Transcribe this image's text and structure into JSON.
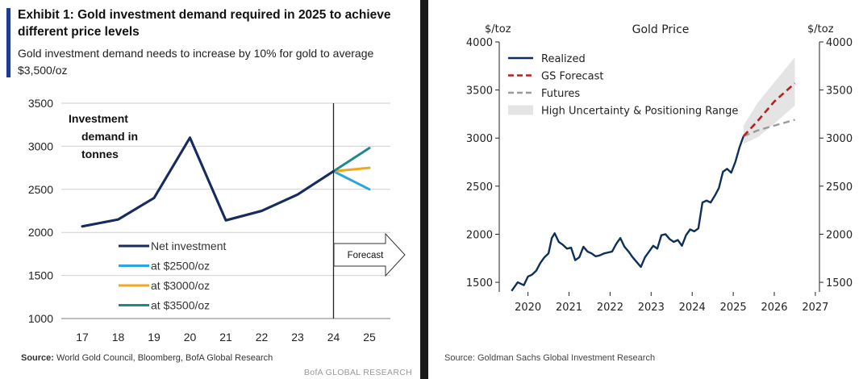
{
  "left": {
    "title": "Exhibit 1: Gold investment demand required in 2025 to achieve different price levels",
    "subtitle": "Gold investment demand needs to increase by 10% for gold to average $3,500/oz",
    "source_label": "Source:",
    "source_text": " World Gold Council, Bloomberg, BofA Global Research",
    "brand": "BofA GLOBAL RESEARCH",
    "forecast_label": "Forecast"
  },
  "right": {
    "source_text": "Source: Goldman Sachs Global Investment Research"
  },
  "colors": {
    "net": "#1a2a5e",
    "at2500": "#2aa7dd",
    "at3000": "#f2a81d",
    "at3500": "#1f8a8c",
    "realized": "#0d2f5c",
    "gs_forecast": "#b22222",
    "futures": "#9a9a9a",
    "band": "#e4e4e4"
  },
  "chart_data": [
    {
      "type": "line",
      "title": "Investment demand in tonnes",
      "categories": [
        "17",
        "18",
        "19",
        "20",
        "21",
        "22",
        "23",
        "24",
        "25"
      ],
      "ylim": [
        1000,
        3500
      ],
      "yticks": [
        1000,
        1500,
        2000,
        2500,
        3000,
        3500
      ],
      "grid": true,
      "legend_position": "bottom-left",
      "series": [
        {
          "name": "Net investment",
          "color_key": "net",
          "values": [
            2070,
            2150,
            2400,
            3100,
            2140,
            2250,
            2440,
            2710,
            null
          ]
        },
        {
          "name": "at $2500/oz",
          "color_key": "at2500",
          "values": [
            null,
            null,
            null,
            null,
            null,
            null,
            null,
            2710,
            2500
          ]
        },
        {
          "name": "at $3000/oz",
          "color_key": "at3000",
          "values": [
            null,
            null,
            null,
            null,
            null,
            null,
            null,
            2710,
            2750
          ]
        },
        {
          "name": "at $3500/oz",
          "color_key": "at3500",
          "values": [
            2070,
            2150,
            2400,
            3100,
            2140,
            2250,
            2440,
            2710,
            2980
          ]
        }
      ]
    },
    {
      "type": "line",
      "title": "Gold Price",
      "ylabel_left": "$/toz",
      "ylabel_right": "$/toz",
      "xticks": [
        2020,
        2021,
        2022,
        2023,
        2024,
        2025,
        2026,
        2027
      ],
      "yticks": [
        1500,
        2000,
        2500,
        3000,
        3500,
        4000
      ],
      "xlim": [
        2019.3,
        2027.1
      ],
      "ylim": [
        1400,
        4000
      ],
      "legend_position": "top-left",
      "legend": [
        "Realized",
        "GS Forecast",
        "Futures",
        "High Uncertainty & Positioning Range"
      ],
      "series": [
        {
          "name": "Realized",
          "color_key": "realized",
          "x": [
            2019.6,
            2019.75,
            2019.9,
            2020.0,
            2020.1,
            2020.2,
            2020.3,
            2020.4,
            2020.5,
            2020.58,
            2020.65,
            2020.75,
            2020.85,
            2020.95,
            2021.05,
            2021.15,
            2021.25,
            2021.35,
            2021.45,
            2021.55,
            2021.65,
            2021.75,
            2021.85,
            2021.95,
            2022.05,
            2022.15,
            2022.25,
            2022.35,
            2022.45,
            2022.55,
            2022.65,
            2022.75,
            2022.85,
            2022.95,
            2023.05,
            2023.15,
            2023.25,
            2023.35,
            2023.45,
            2023.55,
            2023.65,
            2023.75,
            2023.85,
            2023.95,
            2024.05,
            2024.15,
            2024.25,
            2024.35,
            2024.45,
            2024.55,
            2024.65,
            2024.75,
            2024.85,
            2024.95,
            2025.05,
            2025.15,
            2025.25
          ],
          "y": [
            1410,
            1500,
            1470,
            1560,
            1580,
            1620,
            1700,
            1760,
            1800,
            1960,
            2010,
            1920,
            1890,
            1850,
            1860,
            1730,
            1760,
            1870,
            1820,
            1800,
            1770,
            1780,
            1800,
            1810,
            1820,
            1900,
            1960,
            1870,
            1820,
            1760,
            1710,
            1660,
            1760,
            1820,
            1880,
            1850,
            1990,
            2000,
            1950,
            1920,
            1940,
            1880,
            1990,
            2050,
            2030,
            2060,
            2330,
            2350,
            2330,
            2400,
            2480,
            2650,
            2680,
            2640,
            2750,
            2900,
            3020
          ]
        },
        {
          "name": "GS Forecast",
          "color_key": "gs_forecast",
          "x": [
            2025.25,
            2025.6,
            2026.0,
            2026.5
          ],
          "y": [
            3020,
            3180,
            3380,
            3570
          ]
        },
        {
          "name": "Futures",
          "color_key": "futures",
          "x": [
            2025.25,
            2025.6,
            2026.0,
            2026.5
          ],
          "y": [
            3020,
            3080,
            3130,
            3190
          ]
        },
        {
          "name": "High Uncertainty & Positioning Range",
          "color_key": "band",
          "x": [
            2025.25,
            2025.6,
            2026.0,
            2026.5
          ],
          "y_low": [
            2940,
            3010,
            3150,
            3340
          ],
          "y_high": [
            3130,
            3370,
            3580,
            3840
          ]
        }
      ]
    }
  ]
}
